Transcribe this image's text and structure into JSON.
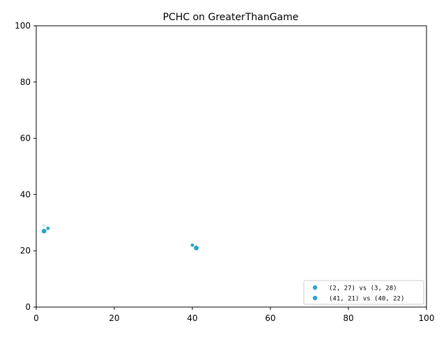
{
  "chart_data": {
    "type": "scatter",
    "title": "PCHC on GreaterThanGame",
    "xlabel": "",
    "ylabel": "",
    "xlim": [
      0,
      100
    ],
    "ylim": [
      0,
      100
    ],
    "x_ticks": [
      0,
      20,
      40,
      60,
      80,
      100
    ],
    "y_ticks": [
      0,
      20,
      40,
      60,
      80,
      100
    ],
    "x_tick_labels": [
      "0",
      "20",
      "40",
      "60",
      "80",
      "100"
    ],
    "y_tick_labels": [
      "0",
      "20",
      "40",
      "60",
      "80",
      "100"
    ],
    "grid": false,
    "legend_position": "lower-right",
    "series": [
      {
        "name": "(2, 27) vs (3, 28)",
        "color": "#29a3cc",
        "points": [
          {
            "x": 2,
            "y": 27,
            "size": "large"
          },
          {
            "x": 3,
            "y": 28,
            "size": "small"
          },
          {
            "x": 2,
            "y": 29,
            "size": "small",
            "faint": true
          }
        ]
      },
      {
        "name": "(41, 21) vs (40, 22)",
        "color": "#29a3cc",
        "points": [
          {
            "x": 41,
            "y": 21,
            "size": "large"
          },
          {
            "x": 40,
            "y": 22,
            "size": "small"
          }
        ]
      }
    ]
  }
}
